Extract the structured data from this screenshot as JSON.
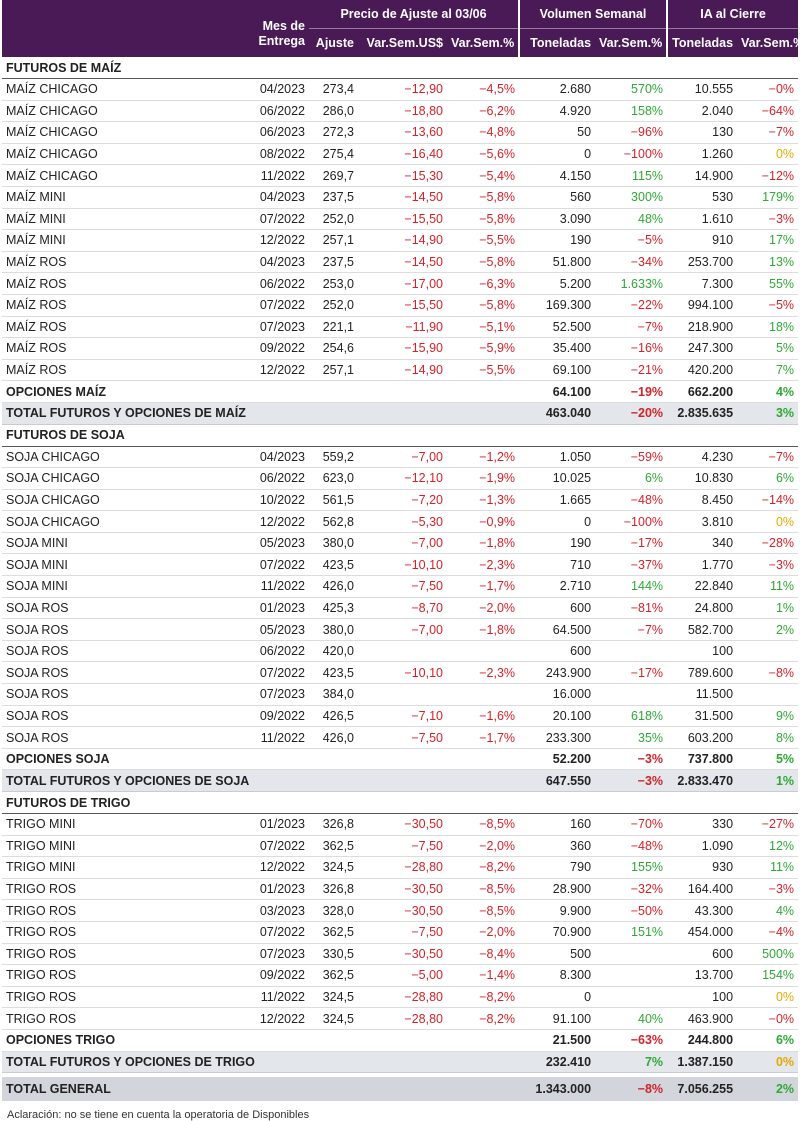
{
  "header": {
    "mes_entrega": "Mes de\nEntrega",
    "mes_line1": "Mes de",
    "mes_line2": "Entrega",
    "precio_group": "Precio de Ajuste al 03/06",
    "volumen_group": "Volumen Semanal",
    "ia_group": "IA al Cierre",
    "ajuste": "Ajuste",
    "var_usd": "Var.Sem.US$",
    "var_pct": "Var.Sem.%",
    "toneladas": "Toneladas",
    "vol_var": "Var.Sem.%",
    "ia_toneladas": "Toneladas",
    "ia_var": "Var.Sem.%"
  },
  "colors": {
    "header_bg": "#4a1a57",
    "negative": "#d2232a",
    "positive": "#2fa836",
    "zero": "#e6a800",
    "total_bg": "#e3e6ea"
  },
  "sections": [
    {
      "title": "FUTUROS DE MAÍZ",
      "rows": [
        [
          "MAÍZ CHICAGO",
          "04/2023",
          "273,4",
          "-12,90",
          "-4,5%",
          "2.680",
          "570%",
          "10.555",
          "-0%"
        ],
        [
          "MAÍZ CHICAGO",
          "06/2022",
          "286,0",
          "-18,80",
          "-6,2%",
          "4.920",
          "158%",
          "2.040",
          "-64%"
        ],
        [
          "MAÍZ CHICAGO",
          "06/2023",
          "272,3",
          "-13,60",
          "-4,8%",
          "50",
          "-96%",
          "130",
          "-7%"
        ],
        [
          "MAÍZ CHICAGO",
          "08/2022",
          "275,4",
          "-16,40",
          "-5,6%",
          "0",
          "-100%",
          "1.260",
          "0%"
        ],
        [
          "MAÍZ CHICAGO",
          "11/2022",
          "269,7",
          "-15,30",
          "-5,4%",
          "4.150",
          "115%",
          "14.900",
          "-12%"
        ],
        [
          "MAÍZ MINI",
          "04/2023",
          "237,5",
          "-14,50",
          "-5,8%",
          "560",
          "300%",
          "530",
          "179%"
        ],
        [
          "MAÍZ MINI",
          "07/2022",
          "252,0",
          "-15,50",
          "-5,8%",
          "3.090",
          "48%",
          "1.610",
          "-3%"
        ],
        [
          "MAÍZ MINI",
          "12/2022",
          "257,1",
          "-14,90",
          "-5,5%",
          "190",
          "-5%",
          "910",
          "17%"
        ],
        [
          "MAÍZ ROS",
          "04/2023",
          "237,5",
          "-14,50",
          "-5,8%",
          "51.800",
          "-34%",
          "253.700",
          "13%"
        ],
        [
          "MAÍZ ROS",
          "06/2022",
          "253,0",
          "-17,00",
          "-6,3%",
          "5.200",
          "1.633%",
          "7.300",
          "55%"
        ],
        [
          "MAÍZ ROS",
          "07/2022",
          "252,0",
          "-15,50",
          "-5,8%",
          "169.300",
          "-22%",
          "994.100",
          "-5%"
        ],
        [
          "MAÍZ ROS",
          "07/2023",
          "221,1",
          "-11,90",
          "-5,1%",
          "52.500",
          "-7%",
          "218.900",
          "18%"
        ],
        [
          "MAÍZ ROS",
          "09/2022",
          "254,6",
          "-15,90",
          "-5,9%",
          "35.400",
          "-16%",
          "247.300",
          "5%"
        ],
        [
          "MAÍZ ROS",
          "12/2022",
          "257,1",
          "-14,90",
          "-5,5%",
          "69.100",
          "-21%",
          "420.200",
          "7%"
        ]
      ],
      "options": [
        "OPCIONES MAÍZ",
        "64.100",
        "-19%",
        "662.200",
        "4%"
      ],
      "total": [
        "TOTAL FUTUROS Y OPCIONES DE MAÍZ",
        "463.040",
        "-20%",
        "2.835.635",
        "3%"
      ]
    },
    {
      "title": "FUTUROS DE SOJA",
      "rows": [
        [
          "SOJA CHICAGO",
          "04/2023",
          "559,2",
          "-7,00",
          "-1,2%",
          "1.050",
          "-59%",
          "4.230",
          "-7%"
        ],
        [
          "SOJA CHICAGO",
          "06/2022",
          "623,0",
          "-12,10",
          "-1,9%",
          "10.025",
          "6%",
          "10.830",
          "6%"
        ],
        [
          "SOJA CHICAGO",
          "10/2022",
          "561,5",
          "-7,20",
          "-1,3%",
          "1.665",
          "-48%",
          "8.450",
          "-14%"
        ],
        [
          "SOJA CHICAGO",
          "12/2022",
          "562,8",
          "-5,30",
          "-0,9%",
          "0",
          "-100%",
          "3.810",
          "0%"
        ],
        [
          "SOJA MINI",
          "05/2023",
          "380,0",
          "-7,00",
          "-1,8%",
          "190",
          "-17%",
          "340",
          "-28%"
        ],
        [
          "SOJA MINI",
          "07/2022",
          "423,5",
          "-10,10",
          "-2,3%",
          "710",
          "-37%",
          "1.770",
          "-3%"
        ],
        [
          "SOJA MINI",
          "11/2022",
          "426,0",
          "-7,50",
          "-1,7%",
          "2.710",
          "144%",
          "22.840",
          "11%"
        ],
        [
          "SOJA ROS",
          "01/2023",
          "425,3",
          "-8,70",
          "-2,0%",
          "600",
          "-81%",
          "24.800",
          "1%"
        ],
        [
          "SOJA ROS",
          "05/2023",
          "380,0",
          "-7,00",
          "-1,8%",
          "64.500",
          "-7%",
          "582.700",
          "2%"
        ],
        [
          "SOJA ROS",
          "06/2022",
          "420,0",
          "",
          "",
          "600",
          "",
          "100",
          ""
        ],
        [
          "SOJA ROS",
          "07/2022",
          "423,5",
          "-10,10",
          "-2,3%",
          "243.900",
          "-17%",
          "789.600",
          "-8%"
        ],
        [
          "SOJA ROS",
          "07/2023",
          "384,0",
          "",
          "",
          "16.000",
          "",
          "11.500",
          ""
        ],
        [
          "SOJA ROS",
          "09/2022",
          "426,5",
          "-7,10",
          "-1,6%",
          "20.100",
          "618%",
          "31.500",
          "9%"
        ],
        [
          "SOJA ROS",
          "11/2022",
          "426,0",
          "-7,50",
          "-1,7%",
          "233.300",
          "35%",
          "603.200",
          "8%"
        ]
      ],
      "options": [
        "OPCIONES SOJA",
        "52.200",
        "-3%",
        "737.800",
        "5%"
      ],
      "total": [
        "TOTAL FUTUROS Y OPCIONES DE SOJA",
        "647.550",
        "-3%",
        "2.833.470",
        "1%"
      ]
    },
    {
      "title": "FUTUROS DE TRIGO",
      "rows": [
        [
          "TRIGO MINI",
          "01/2023",
          "326,8",
          "-30,50",
          "-8,5%",
          "160",
          "-70%",
          "330",
          "-27%"
        ],
        [
          "TRIGO MINI",
          "07/2022",
          "362,5",
          "-7,50",
          "-2,0%",
          "360",
          "-48%",
          "1.090",
          "12%"
        ],
        [
          "TRIGO MINI",
          "12/2022",
          "324,5",
          "-28,80",
          "-8,2%",
          "790",
          "155%",
          "930",
          "11%"
        ],
        [
          "TRIGO ROS",
          "01/2023",
          "326,8",
          "-30,50",
          "-8,5%",
          "28.900",
          "-32%",
          "164.400",
          "-3%"
        ],
        [
          "TRIGO ROS",
          "03/2023",
          "328,0",
          "-30,50",
          "-8,5%",
          "9.900",
          "-50%",
          "43.300",
          "4%"
        ],
        [
          "TRIGO ROS",
          "07/2022",
          "362,5",
          "-7,50",
          "-2,0%",
          "70.900",
          "151%",
          "454.000",
          "-4%"
        ],
        [
          "TRIGO ROS",
          "07/2023",
          "330,5",
          "-30,50",
          "-8,4%",
          "500",
          "",
          "600",
          "500%"
        ],
        [
          "TRIGO ROS",
          "09/2022",
          "362,5",
          "-5,00",
          "-1,4%",
          "8.300",
          "",
          "13.700",
          "154%"
        ],
        [
          "TRIGO ROS",
          "11/2022",
          "324,5",
          "-28,80",
          "-8,2%",
          "0",
          "",
          "100",
          "0%"
        ],
        [
          "TRIGO ROS",
          "12/2022",
          "324,5",
          "-28,80",
          "-8,2%",
          "91.100",
          "40%",
          "463.900",
          "-0%"
        ]
      ],
      "options": [
        "OPCIONES TRIGO",
        "21.500",
        "-63%",
        "244.800",
        "6%"
      ],
      "total": [
        "TOTAL FUTUROS Y OPCIONES DE TRIGO",
        "232.410",
        "7%",
        "1.387.150",
        "0%"
      ]
    }
  ],
  "grand_total": [
    "TOTAL GENERAL",
    "1.343.000",
    "-8%",
    "7.056.255",
    "2%"
  ],
  "note": "Aclaración: no se tiene en cuenta la operatoria de Disponibles"
}
